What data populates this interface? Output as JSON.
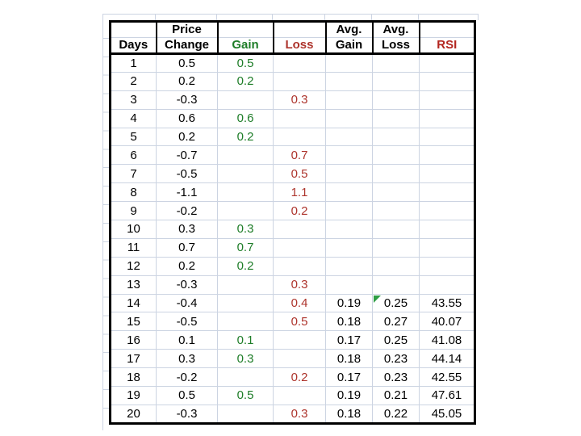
{
  "sheet": {
    "header": {
      "line1": {
        "days": "",
        "price": "Price",
        "gain": "",
        "loss": "",
        "avg_gain": "Avg.",
        "avg_loss": "Avg.",
        "rsi": ""
      },
      "line2": {
        "days": "Days",
        "price": "Change",
        "gain": "Gain",
        "loss": "Loss",
        "avg_gain": "Gain",
        "avg_loss": "Loss",
        "rsi": "RSI"
      }
    },
    "rows": [
      {
        "day": "1",
        "change": "0.5",
        "gain": "0.5",
        "loss": "",
        "avg_gain": "",
        "avg_loss": "",
        "rsi": "",
        "indicator": false
      },
      {
        "day": "2",
        "change": "0.2",
        "gain": "0.2",
        "loss": "",
        "avg_gain": "",
        "avg_loss": "",
        "rsi": "",
        "indicator": false
      },
      {
        "day": "3",
        "change": "-0.3",
        "gain": "",
        "loss": "0.3",
        "avg_gain": "",
        "avg_loss": "",
        "rsi": "",
        "indicator": false
      },
      {
        "day": "4",
        "change": "0.6",
        "gain": "0.6",
        "loss": "",
        "avg_gain": "",
        "avg_loss": "",
        "rsi": "",
        "indicator": false
      },
      {
        "day": "5",
        "change": "0.2",
        "gain": "0.2",
        "loss": "",
        "avg_gain": "",
        "avg_loss": "",
        "rsi": "",
        "indicator": false
      },
      {
        "day": "6",
        "change": "-0.7",
        "gain": "",
        "loss": "0.7",
        "avg_gain": "",
        "avg_loss": "",
        "rsi": "",
        "indicator": false
      },
      {
        "day": "7",
        "change": "-0.5",
        "gain": "",
        "loss": "0.5",
        "avg_gain": "",
        "avg_loss": "",
        "rsi": "",
        "indicator": false
      },
      {
        "day": "8",
        "change": "-1.1",
        "gain": "",
        "loss": "1.1",
        "avg_gain": "",
        "avg_loss": "",
        "rsi": "",
        "indicator": false
      },
      {
        "day": "9",
        "change": "-0.2",
        "gain": "",
        "loss": "0.2",
        "avg_gain": "",
        "avg_loss": "",
        "rsi": "",
        "indicator": false
      },
      {
        "day": "10",
        "change": "0.3",
        "gain": "0.3",
        "loss": "",
        "avg_gain": "",
        "avg_loss": "",
        "rsi": "",
        "indicator": false
      },
      {
        "day": "11",
        "change": "0.7",
        "gain": "0.7",
        "loss": "",
        "avg_gain": "",
        "avg_loss": "",
        "rsi": "",
        "indicator": false
      },
      {
        "day": "12",
        "change": "0.2",
        "gain": "0.2",
        "loss": "",
        "avg_gain": "",
        "avg_loss": "",
        "rsi": "",
        "indicator": false
      },
      {
        "day": "13",
        "change": "-0.3",
        "gain": "",
        "loss": "0.3",
        "avg_gain": "",
        "avg_loss": "",
        "rsi": "",
        "indicator": false
      },
      {
        "day": "14",
        "change": "-0.4",
        "gain": "",
        "loss": "0.4",
        "avg_gain": "0.19",
        "avg_loss": "0.25",
        "rsi": "43.55",
        "indicator": true
      },
      {
        "day": "15",
        "change": "-0.5",
        "gain": "",
        "loss": "0.5",
        "avg_gain": "0.18",
        "avg_loss": "0.27",
        "rsi": "40.07",
        "indicator": false
      },
      {
        "day": "16",
        "change": "0.1",
        "gain": "0.1",
        "loss": "",
        "avg_gain": "0.17",
        "avg_loss": "0.25",
        "rsi": "41.08",
        "indicator": false
      },
      {
        "day": "17",
        "change": "0.3",
        "gain": "0.3",
        "loss": "",
        "avg_gain": "0.18",
        "avg_loss": "0.23",
        "rsi": "44.14",
        "indicator": false
      },
      {
        "day": "18",
        "change": "-0.2",
        "gain": "",
        "loss": "0.2",
        "avg_gain": "0.17",
        "avg_loss": "0.23",
        "rsi": "42.55",
        "indicator": false
      },
      {
        "day": "19",
        "change": "0.5",
        "gain": "0.5",
        "loss": "",
        "avg_gain": "0.19",
        "avg_loss": "0.21",
        "rsi": "47.61",
        "indicator": false
      },
      {
        "day": "20",
        "change": "-0.3",
        "gain": "",
        "loss": "0.3",
        "avg_gain": "0.18",
        "avg_loss": "0.22",
        "rsi": "45.05",
        "indicator": false
      }
    ],
    "colors": {
      "gain_text": "#1e7d28",
      "loss_text": "#ad342c",
      "rsi_header_text": "#b3251f",
      "gridline": "#ccd4e2",
      "table_border": "#000000",
      "indicator": "#2f9e44"
    }
  }
}
